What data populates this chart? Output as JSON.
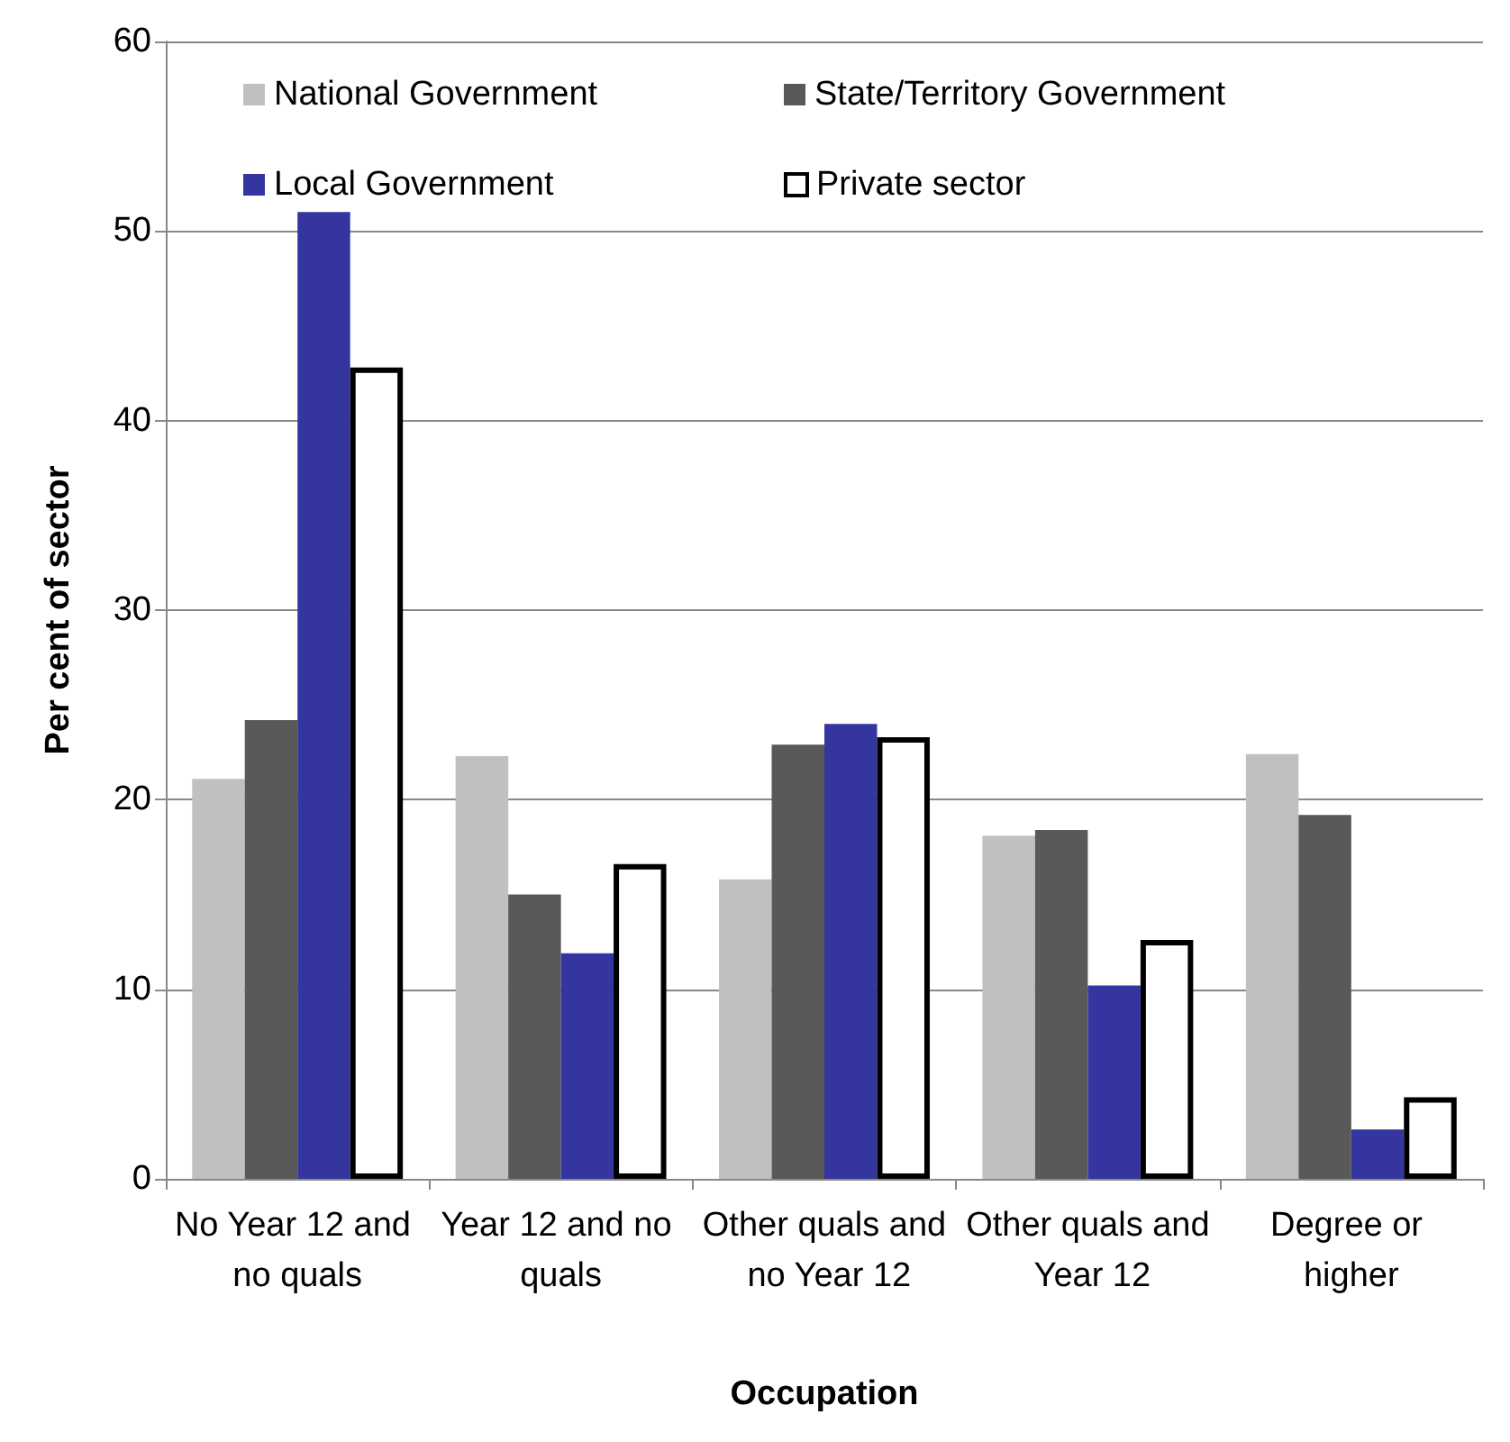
{
  "chart_data": {
    "type": "bar",
    "xlabel": "Occupation",
    "ylabel": "Per cent of sector",
    "categories": [
      "No Year 12 and no quals",
      "Year 12 and no quals",
      "Other quals and no Year 12",
      "Other quals and Year 12",
      "Degree or higher"
    ],
    "series": [
      {
        "name": "National Government",
        "color": "#c0c0c0",
        "values": [
          21.1,
          22.3,
          15.8,
          18.1,
          22.4
        ]
      },
      {
        "name": "State/Territory Government",
        "color": "#595959",
        "values": [
          24.2,
          15.0,
          22.9,
          18.4,
          19.2
        ]
      },
      {
        "name": "Local Government",
        "color": "#3535a0",
        "values": [
          51.0,
          11.9,
          24.0,
          10.2,
          2.6
        ]
      },
      {
        "name": "Private sector",
        "color": "#ffffff",
        "values": [
          42.8,
          16.6,
          23.3,
          12.6,
          4.3
        ]
      }
    ],
    "ylim": [
      0,
      60
    ],
    "yticks": [
      0,
      10,
      20,
      30,
      40,
      50,
      60
    ],
    "grid": "y",
    "legend": "top"
  }
}
